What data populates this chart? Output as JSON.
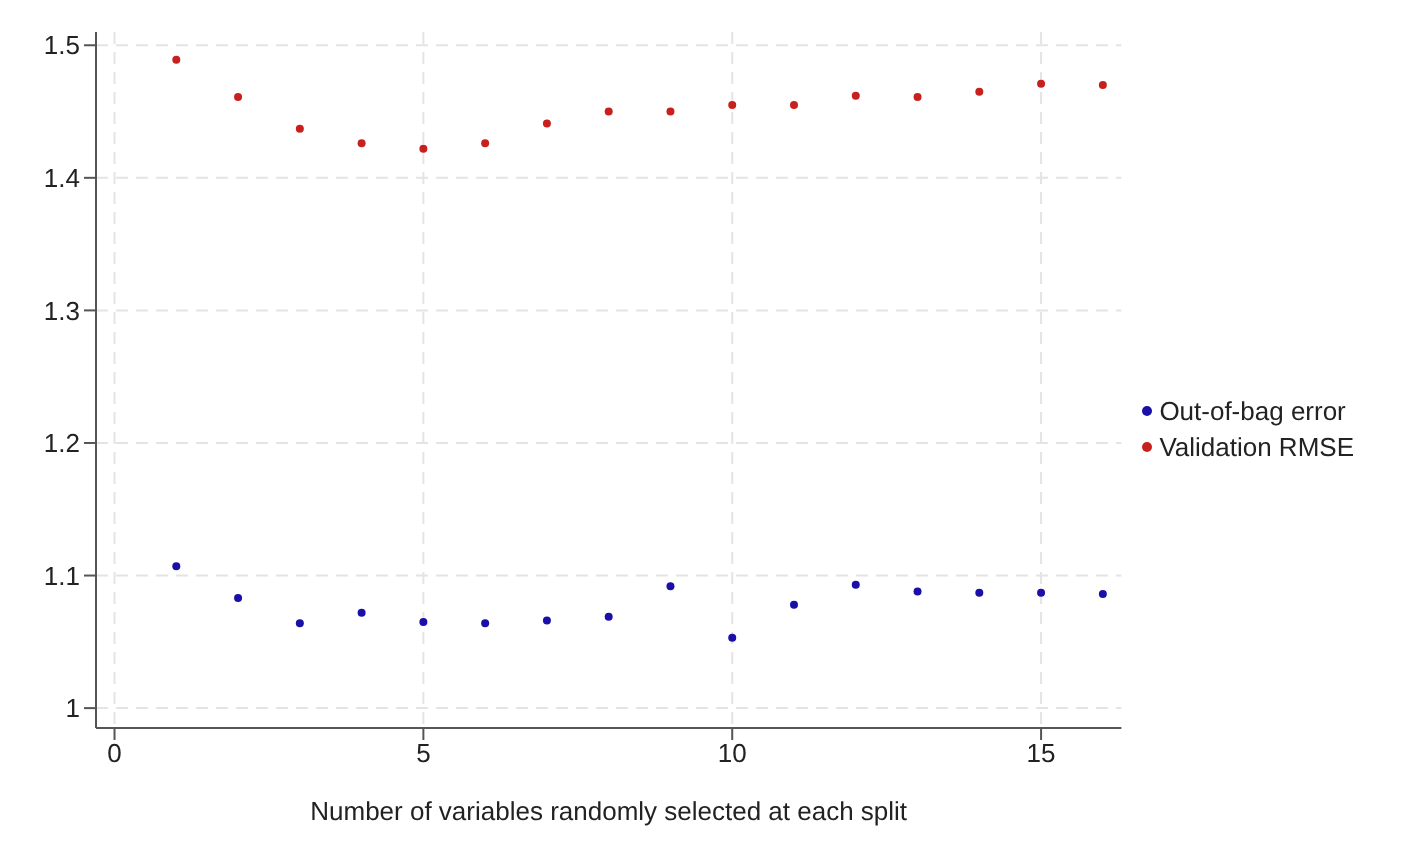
{
  "chart_data": {
    "type": "scatter",
    "xlabel": "Number of variables randomly selected at each split",
    "x": [
      1,
      2,
      3,
      4,
      5,
      6,
      7,
      8,
      9,
      10,
      11,
      12,
      13,
      14,
      15,
      16
    ],
    "series": [
      {
        "name": "Out-of-bag error",
        "color": "#1a0fa8",
        "values": [
          1.107,
          1.083,
          1.064,
          1.072,
          1.065,
          1.064,
          1.066,
          1.069,
          1.092,
          1.053,
          1.078,
          1.093,
          1.088,
          1.087,
          1.087,
          1.086
        ]
      },
      {
        "name": "Validation RMSE",
        "color": "#c8201e",
        "values": [
          1.489,
          1.461,
          1.437,
          1.426,
          1.422,
          1.426,
          1.441,
          1.45,
          1.45,
          1.455,
          1.455,
          1.462,
          1.461,
          1.465,
          1.471,
          1.47
        ]
      }
    ],
    "xlim": [
      -0.3,
      16.3
    ],
    "xticks": [
      0,
      5,
      10,
      15
    ],
    "ylim": [
      0.985,
      1.51
    ],
    "yticks": [
      1,
      1.1,
      1.2,
      1.3,
      1.4,
      1.5
    ],
    "grid": true,
    "legend": "right",
    "marker": "circle"
  }
}
